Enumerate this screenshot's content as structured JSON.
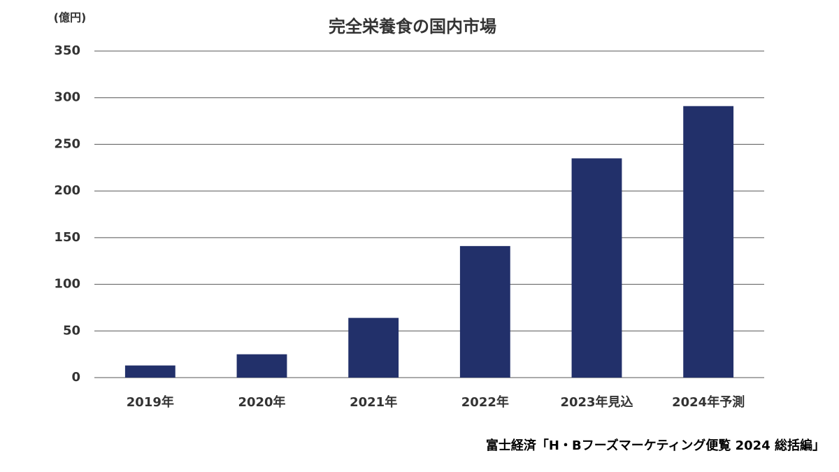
{
  "chart_data": {
    "type": "bar",
    "title": "完全栄養食の国内市場",
    "y_unit": "(億円)",
    "categories": [
      "2019年",
      "2020年",
      "2021年",
      "2022年",
      "2023年見込",
      "2024年予測"
    ],
    "values": [
      13,
      25,
      64,
      141,
      235,
      291
    ],
    "color": "#22306a",
    "ylim": [
      0,
      350
    ],
    "yticks": [
      0,
      50,
      100,
      150,
      200,
      250,
      300,
      350
    ],
    "grid": true,
    "source": "富士経済「H・Bフーズマーケティング便覧 2024 総括編」"
  }
}
